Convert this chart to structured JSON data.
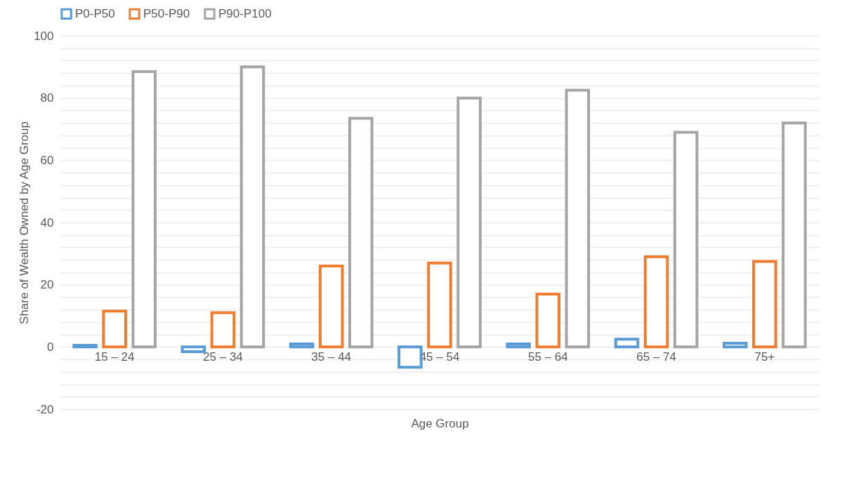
{
  "chart_data": {
    "type": "bar",
    "xlabel": "Age Group",
    "ylabel": "Share of Wealth Owned by Age Group",
    "categories": [
      "15 – 24",
      "25 – 34",
      "35 – 44",
      "45 – 54",
      "55 – 64",
      "65 – 74",
      "75+"
    ],
    "series": [
      {
        "name": "P0-P50",
        "color": "#5b9bd5",
        "values": [
          0.5,
          -1.5,
          1,
          -6.5,
          1,
          2.5,
          1.2
        ]
      },
      {
        "name": "P50-P90",
        "color": "#ed7d31",
        "values": [
          11.5,
          11,
          26,
          27,
          17,
          29,
          27.5
        ]
      },
      {
        "name": "P90-P100",
        "color": "#a5a5a5",
        "values": [
          88.5,
          90,
          73.5,
          80,
          82.5,
          69,
          72
        ]
      }
    ],
    "ylim": [
      -20,
      100
    ],
    "yticks": [
      -20,
      {
        "value": -16,
        "label": null
      },
      {
        "value": -12,
        "label": null
      },
      {
        "value": -8,
        "label": null
      },
      {
        "value": -4,
        "label": null
      },
      0,
      {
        "value": 4,
        "label": null
      },
      {
        "value": 8,
        "label": null
      },
      {
        "value": 12,
        "label": null
      },
      {
        "value": 16,
        "label": null
      },
      20,
      {
        "value": 24,
        "label": null
      },
      {
        "value": 28,
        "label": null
      },
      {
        "value": 32,
        "label": null
      },
      {
        "value": 36,
        "label": null
      },
      40,
      {
        "value": 44,
        "label": null
      },
      {
        "value": 48,
        "label": null
      },
      {
        "value": 52,
        "label": null
      },
      {
        "value": 56,
        "label": null
      },
      60,
      {
        "value": 64,
        "label": null
      },
      {
        "value": 68,
        "label": null
      },
      {
        "value": 72,
        "label": null
      },
      {
        "value": 76,
        "label": null
      },
      80,
      {
        "value": 84,
        "label": null
      },
      {
        "value": 88,
        "label": null
      },
      {
        "value": 92,
        "label": null
      },
      {
        "value": 96,
        "label": null
      },
      100
    ],
    "grid": true,
    "legend": "top"
  }
}
